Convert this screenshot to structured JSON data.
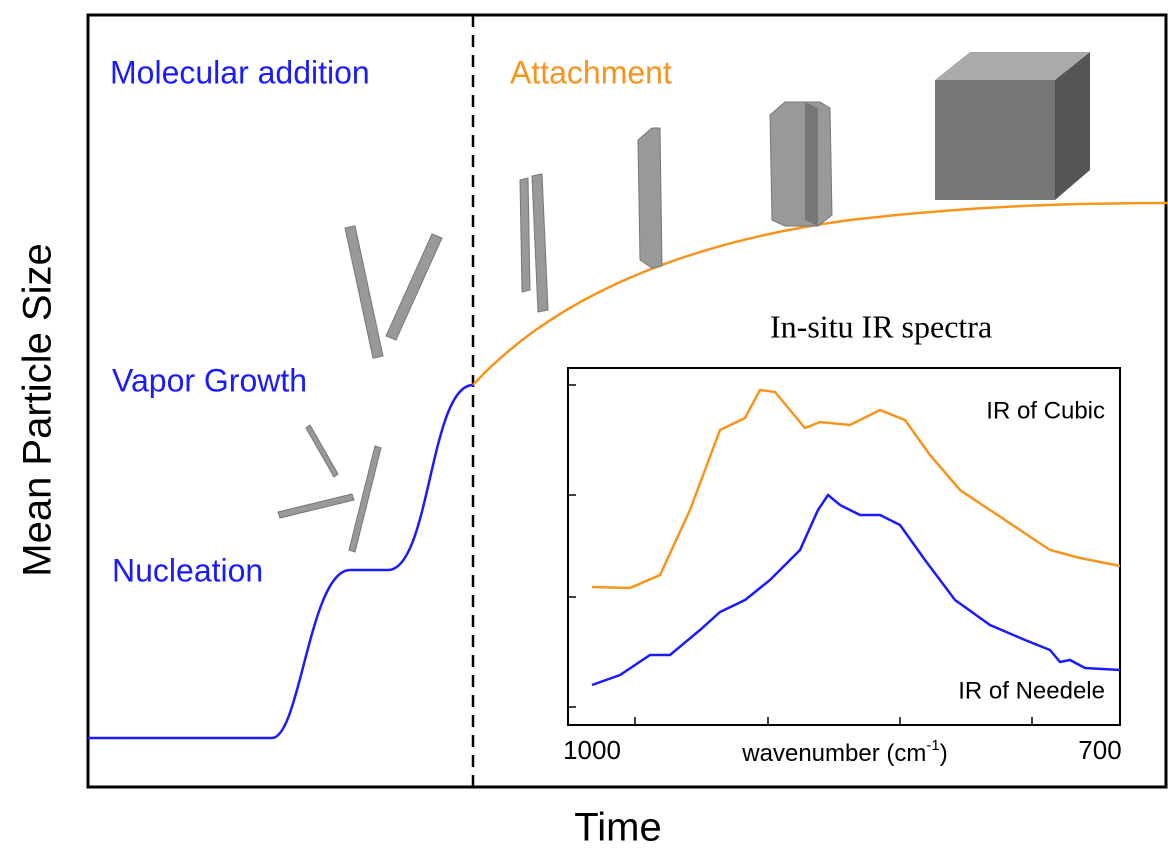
{
  "axes": {
    "y_label": "Mean Particle Size",
    "x_label": "Time"
  },
  "stages": {
    "molecular": "Molecular addition",
    "attachment": "Attachment",
    "vapor": "Vapor Growth",
    "nucleation": "Nucleation"
  },
  "inset": {
    "title": "In-situ IR spectra",
    "curves": {
      "cubic": "IR of Cubic",
      "needle": "IR of Needele"
    },
    "x_ticks": {
      "left": "1000",
      "right": "700"
    },
    "x_label": {
      "text": "wavenumber (cm",
      "sup": "-1",
      "end": ")"
    }
  }
}
